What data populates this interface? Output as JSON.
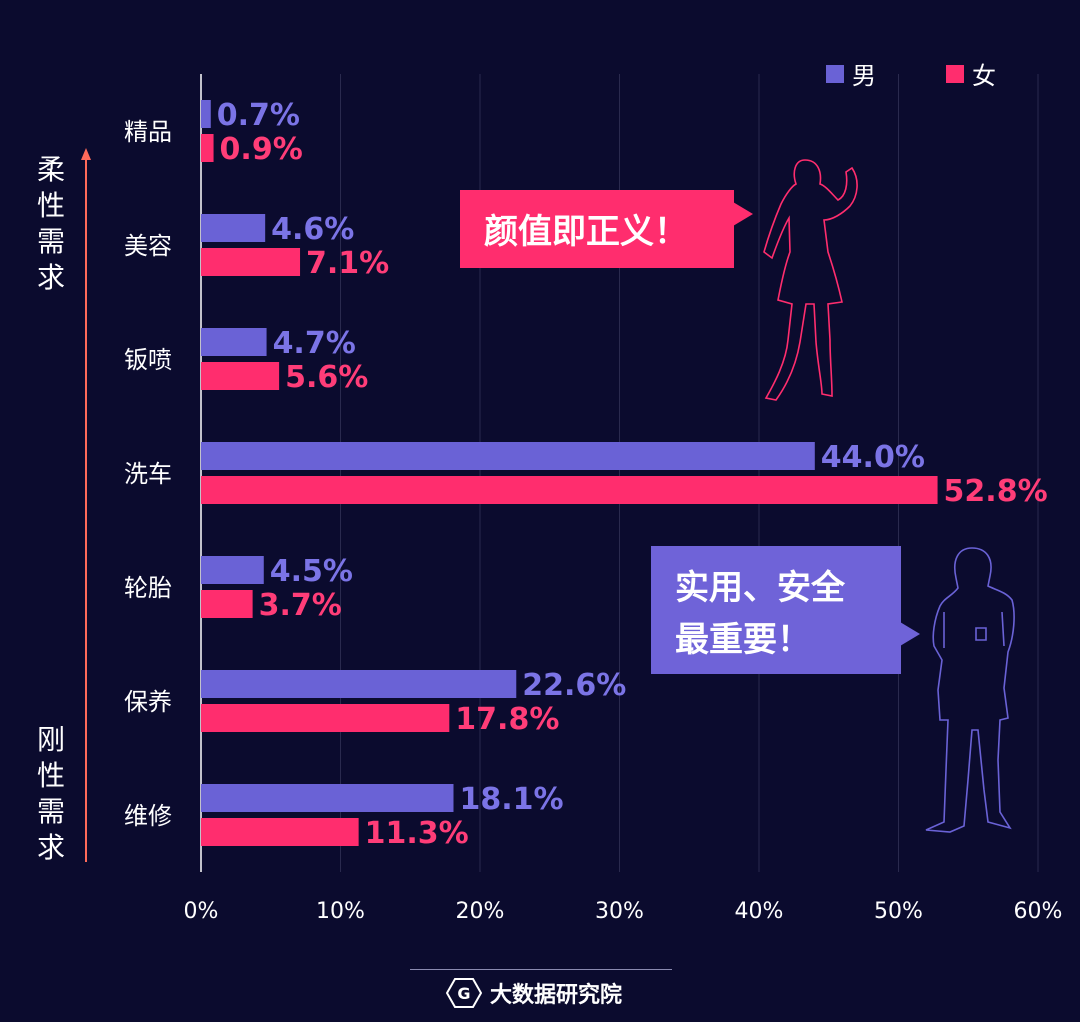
{
  "chart_data": {
    "type": "bar",
    "orientation": "horizontal",
    "categories": [
      "精品",
      "美容",
      "钣喷",
      "洗车",
      "轮胎",
      "保养",
      "维修"
    ],
    "series": [
      {
        "name": "男",
        "values": [
          0.7,
          4.6,
          4.7,
          44.0,
          4.5,
          22.6,
          18.1
        ],
        "labels": [
          "0.7%",
          "4.6%",
          "4.7%",
          "44.0%",
          "4.5%",
          "22.6%",
          "18.1%"
        ],
        "color": "#6a62d6"
      },
      {
        "name": "女",
        "values": [
          0.9,
          7.1,
          5.6,
          52.8,
          3.7,
          17.8,
          11.3
        ],
        "labels": [
          "0.9%",
          "7.1%",
          "5.6%",
          "52.8%",
          "3.7%",
          "17.8%",
          "11.3%"
        ],
        "color": "#ff2d6e"
      }
    ],
    "xlim": [
      0,
      60
    ],
    "x_ticks": [
      "0%",
      "10%",
      "20%",
      "30%",
      "40%",
      "50%",
      "60%"
    ],
    "grid": true,
    "legend_position": "top-right"
  },
  "legend": {
    "male": "男",
    "female": "女"
  },
  "side_labels": {
    "top": "柔性需求",
    "bottom": "刚性需求"
  },
  "callouts": {
    "female": "颜值即正义！",
    "male": "实用、安全最重要！"
  },
  "footer": {
    "brand": "大数据研究院",
    "logo_text": "G"
  },
  "colors": {
    "background": "#0b0b2e",
    "male": "#6a62d6",
    "female": "#ff2d6e",
    "grid": "#2a2a4e",
    "axis_arrow": "#ff6a5a",
    "male_label": "#7b74e6",
    "female_label": "#ff3d78"
  }
}
